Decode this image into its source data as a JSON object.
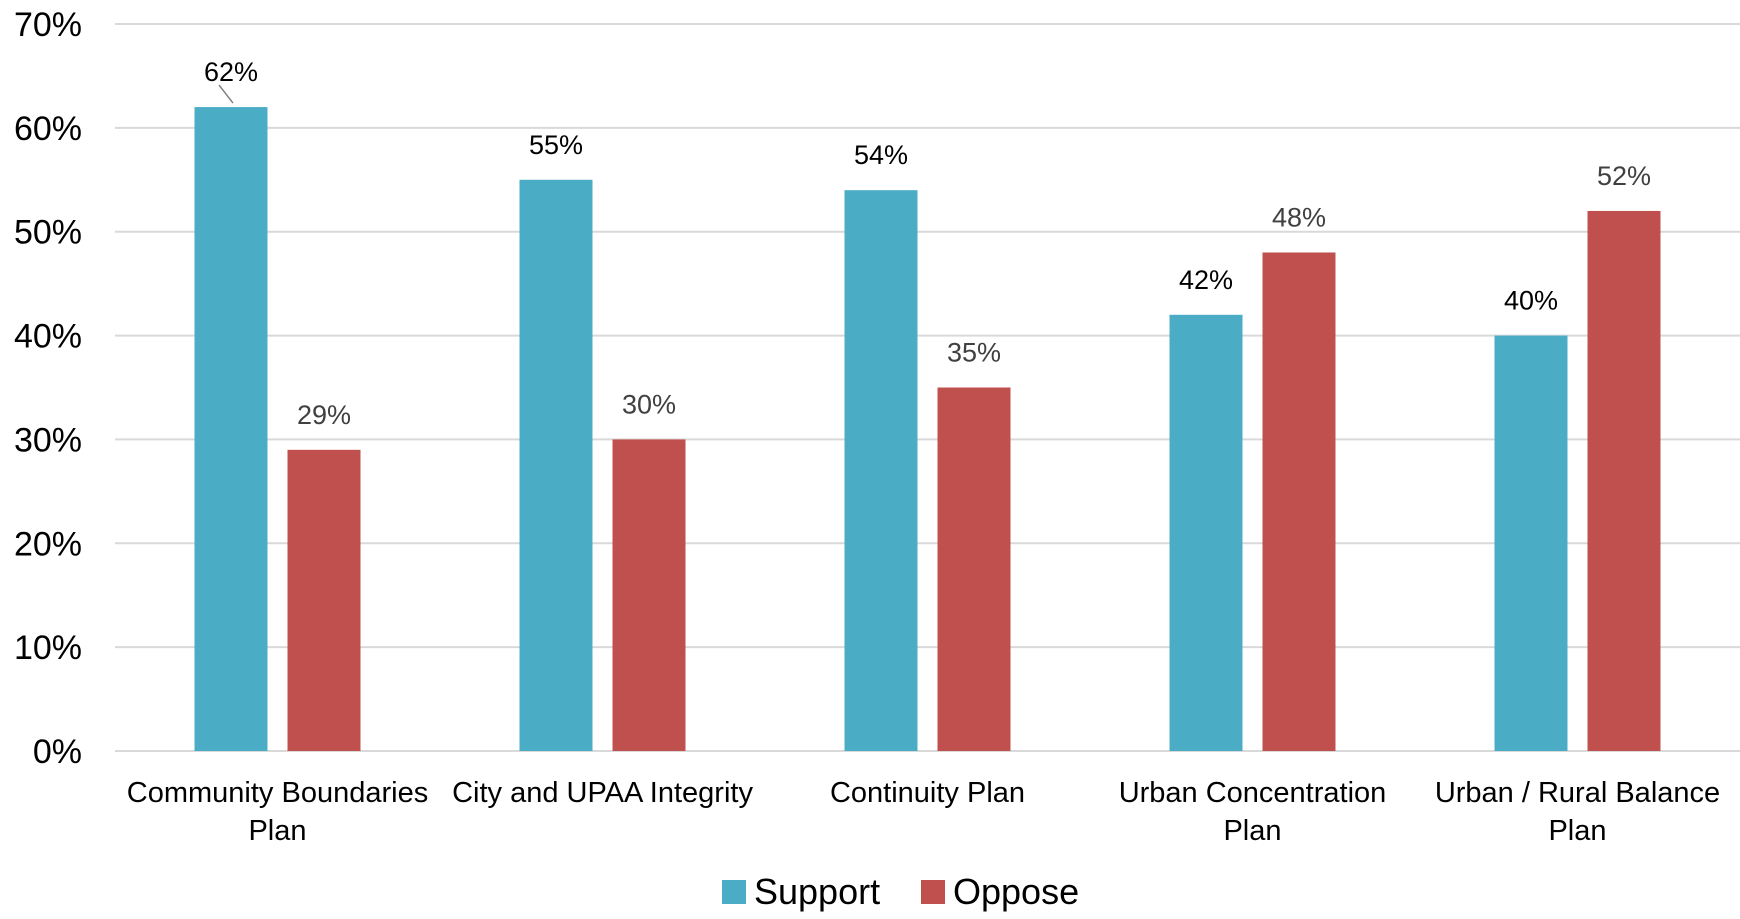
{
  "chart_data": {
    "type": "bar",
    "categories": [
      [
        "Community Boundaries",
        "Plan"
      ],
      [
        "City and UPAA Integrity"
      ],
      [
        "Continuity Plan"
      ],
      [
        "Urban Concentration",
        "Plan"
      ],
      [
        "Urban / Rural Balance",
        "Plan"
      ]
    ],
    "series": [
      {
        "name": "Support",
        "color": "#4bacc6",
        "values": [
          62,
          55,
          54,
          42,
          40
        ],
        "labels": [
          "62%",
          "55%",
          "54%",
          "42%",
          "40%"
        ],
        "label_color": "#000000"
      },
      {
        "name": "Oppose",
        "color": "#c0504d",
        "values": [
          29,
          30,
          35,
          48,
          52
        ],
        "labels": [
          "29%",
          "30%",
          "35%",
          "48%",
          "52%"
        ],
        "label_color": "#404040"
      }
    ],
    "ylim": [
      0,
      70
    ],
    "yticks": [
      0,
      10,
      20,
      30,
      40,
      50,
      60,
      70
    ],
    "ytick_labels": [
      "0%",
      "10%",
      "20%",
      "30%",
      "40%",
      "50%",
      "60%",
      "70%"
    ],
    "grid": true,
    "legend_position": "bottom",
    "gridline_color": "#d9d9d9"
  }
}
